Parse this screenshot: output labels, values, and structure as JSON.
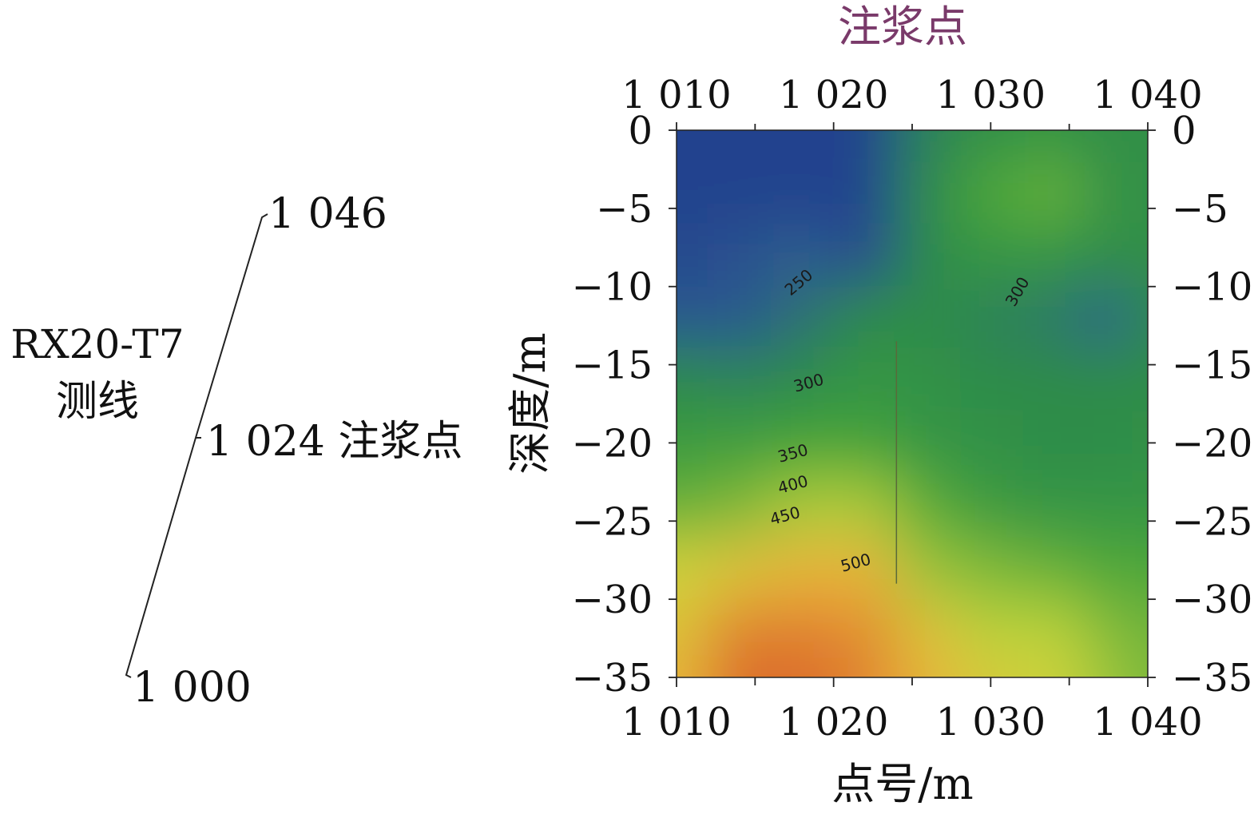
{
  "survey_line": {
    "name_line1": "RX20-T7",
    "name_line2": "测线",
    "end_label": "1 046",
    "grout_label": "1 024 注浆点",
    "start_label": "1 000"
  },
  "chart_data": {
    "type": "heatmap",
    "title": "注浆点",
    "xlabel": "点号/m",
    "ylabel": "深度/m",
    "xlim": [
      1010,
      1040
    ],
    "ylim": [
      -35,
      0
    ],
    "x_ticks": [
      1010,
      1020,
      1030,
      1040
    ],
    "x_tick_labels": [
      "1 010",
      "1 020",
      "1 030",
      "1 040"
    ],
    "y_ticks": [
      0,
      -5,
      -10,
      -15,
      -20,
      -25,
      -30,
      -35
    ],
    "y_tick_labels": [
      "0",
      "−5",
      "−10",
      "−15",
      "−20",
      "−25",
      "−30",
      "−35"
    ],
    "grout_point_x": 1024,
    "grid": false,
    "colorscale": [
      "#213c8e",
      "#2e5f8f",
      "#2e8c4a",
      "#42a33a",
      "#7bb83a",
      "#c7d93a",
      "#e6b53a",
      "#e0782e",
      "#c83a24"
    ],
    "value_range": [
      200,
      600
    ],
    "x": [
      1010,
      1014,
      1018,
      1022,
      1026,
      1030,
      1034,
      1038,
      1040
    ],
    "y": [
      0,
      -4,
      -8,
      -12,
      -16,
      -20,
      -24,
      -28,
      -32,
      -35
    ],
    "z": [
      [
        210,
        210,
        210,
        210,
        290,
        310,
        320,
        300,
        310
      ],
      [
        210,
        210,
        210,
        210,
        300,
        360,
        380,
        310,
        310
      ],
      [
        220,
        230,
        250,
        215,
        300,
        320,
        320,
        300,
        310
      ],
      [
        240,
        240,
        270,
        300,
        300,
        290,
        280,
        250,
        300
      ],
      [
        300,
        290,
        300,
        320,
        310,
        300,
        300,
        300,
        300
      ],
      [
        330,
        340,
        350,
        350,
        320,
        310,
        300,
        300,
        310
      ],
      [
        380,
        400,
        430,
        430,
        370,
        330,
        320,
        320,
        320
      ],
      [
        460,
        480,
        500,
        500,
        420,
        400,
        380,
        360,
        360
      ],
      [
        480,
        540,
        540,
        530,
        480,
        440,
        440,
        400,
        390
      ],
      [
        500,
        560,
        560,
        540,
        500,
        470,
        460,
        420,
        400
      ]
    ],
    "contour_labels": [
      {
        "text": "250",
        "x": 1018,
        "y": -10
      },
      {
        "text": "300",
        "x": 1032,
        "y": -10.5
      },
      {
        "text": "300",
        "x": 1018.5,
        "y": -16.5
      },
      {
        "text": "350",
        "x": 1017.5,
        "y": -21
      },
      {
        "text": "400",
        "x": 1017.5,
        "y": -23
      },
      {
        "text": "450",
        "x": 1017,
        "y": -25
      },
      {
        "text": "500",
        "x": 1021.5,
        "y": -28
      }
    ]
  }
}
